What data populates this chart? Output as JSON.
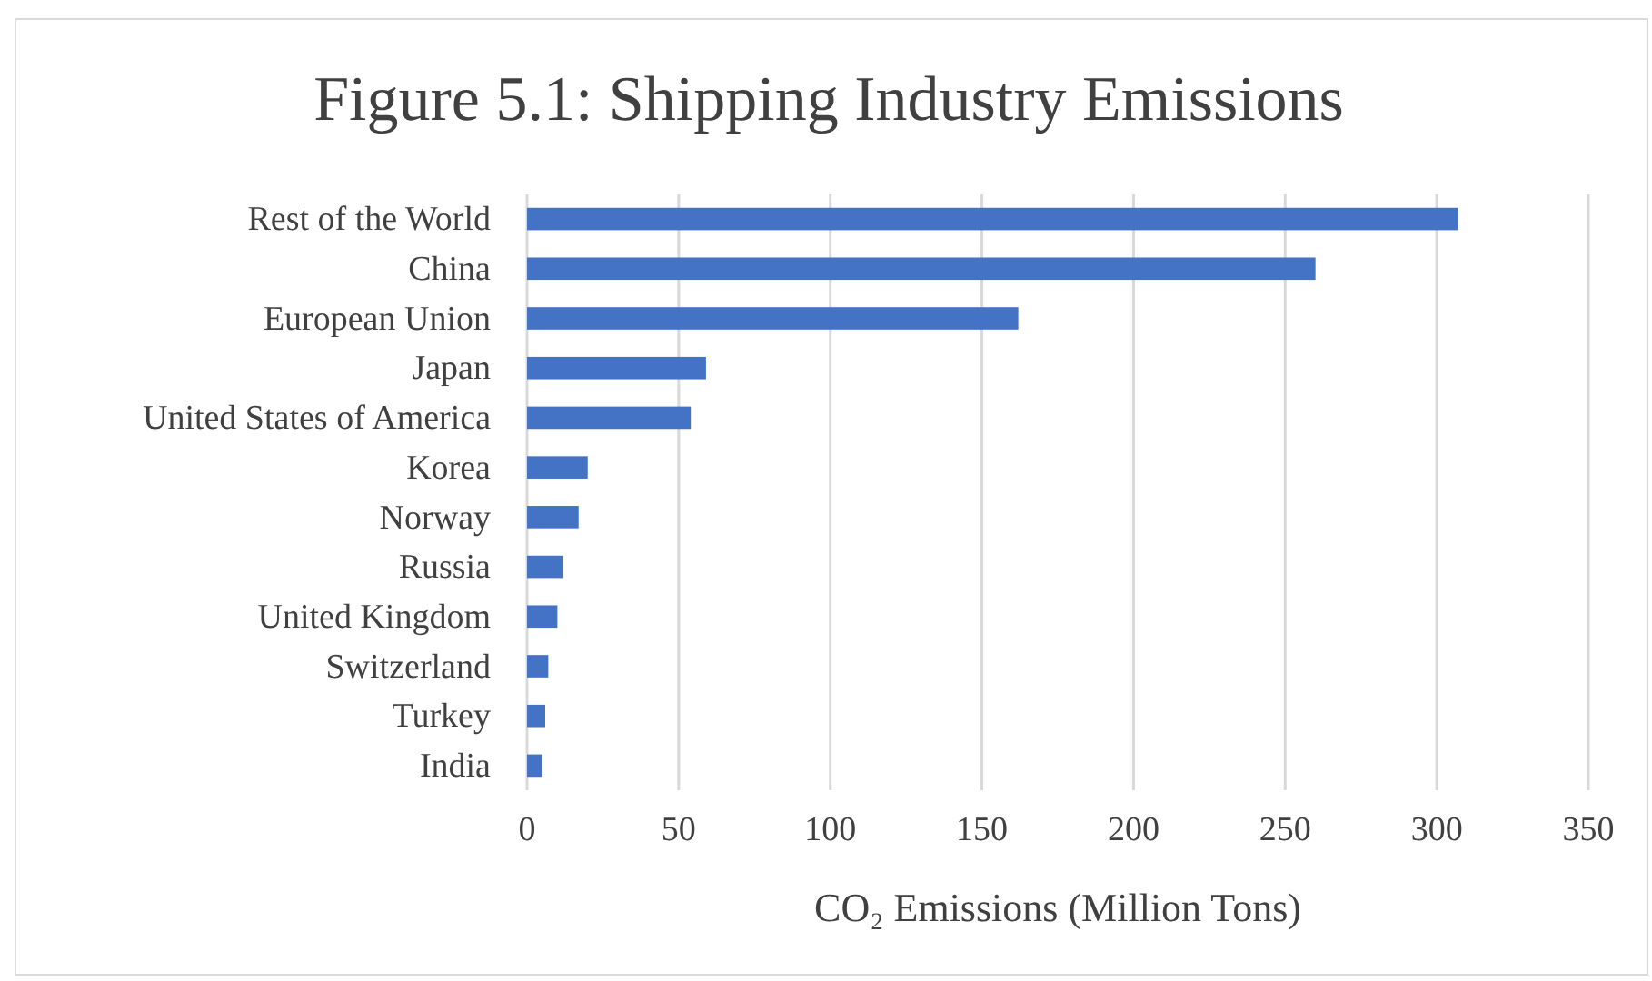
{
  "chart_data": {
    "type": "bar",
    "orientation": "horizontal",
    "title": "Figure 5.1: Shipping Industry Emissions",
    "xlabel": "CO₂ Emissions (Million Tons)",
    "categories": [
      "Rest of the World",
      "China",
      "European Union",
      "Japan",
      "United States of America",
      "Korea",
      "Norway",
      "Russia",
      "United Kingdom",
      "Switzerland",
      "Turkey",
      "India"
    ],
    "values": [
      307,
      260,
      162,
      59,
      54,
      20,
      17,
      12,
      10,
      7,
      6,
      5
    ],
    "color": "#4472c4",
    "xlim": [
      0,
      350
    ],
    "xticks": [
      0,
      50,
      100,
      150,
      200,
      250,
      300,
      350
    ],
    "grid": "x"
  }
}
